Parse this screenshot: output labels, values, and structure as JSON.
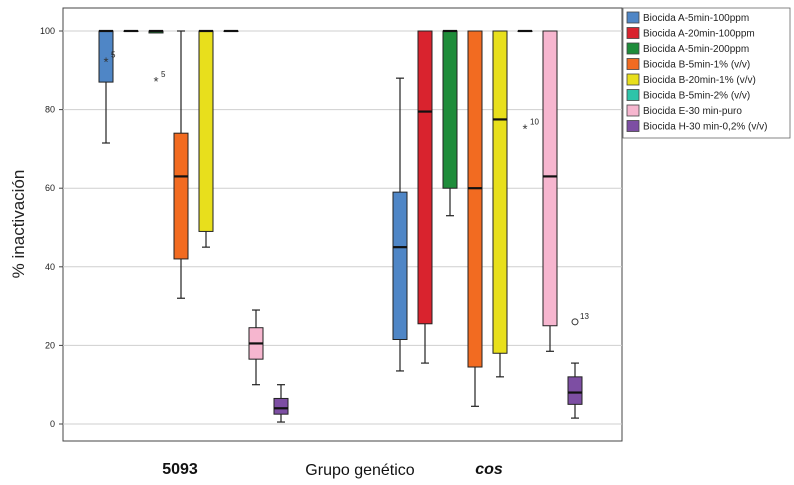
{
  "chart_data": {
    "type": "boxplot",
    "ylabel": "% inactivación",
    "xlabel": "Grupo genético",
    "ylim": [
      0,
      100
    ],
    "yticks": [
      0,
      20,
      40,
      60,
      80,
      100
    ],
    "grid": "horizontal",
    "legend_position": "right",
    "groups": [
      "5093",
      "cos"
    ],
    "series": [
      {
        "name": "Biocida A-5min-100ppm",
        "color": "#4f86c6",
        "data": [
          {
            "group": "5093",
            "min": 71.5,
            "q1": 87,
            "median": 100,
            "q3": 100,
            "max": 100,
            "outliers": [
              {
                "value": 92.5,
                "label": "5"
              }
            ]
          },
          {
            "group": "cos",
            "min": 13.5,
            "q1": 21.5,
            "median": 45,
            "q3": 59,
            "max": 88,
            "outliers": []
          }
        ]
      },
      {
        "name": "Biocida A-20min-100ppm",
        "color": "#d9232e",
        "data": [
          {
            "group": "5093",
            "min": 100,
            "q1": 100,
            "median": 100,
            "q3": 100,
            "max": 100,
            "outliers": []
          },
          {
            "group": "cos",
            "min": 15.5,
            "q1": 25.5,
            "median": 79.5,
            "q3": 100,
            "max": 100,
            "outliers": []
          }
        ]
      },
      {
        "name": "Biocida A-5min-200ppm",
        "color": "#1e8c3a",
        "data": [
          {
            "group": "5093",
            "min": 99.5,
            "q1": 99.5,
            "median": 100,
            "q3": 100,
            "max": 100,
            "outliers": [
              {
                "value": 87.5,
                "label": "5"
              }
            ]
          },
          {
            "group": "cos",
            "min": 53,
            "q1": 60,
            "median": 100,
            "q3": 100,
            "max": 100,
            "outliers": []
          }
        ]
      },
      {
        "name": "Biocida B-5min-1% (v/v)",
        "color": "#f26b21",
        "data": [
          {
            "group": "5093",
            "min": 32,
            "q1": 42,
            "median": 63,
            "q3": 74,
            "max": 100,
            "outliers": []
          },
          {
            "group": "cos",
            "min": 4.5,
            "q1": 14.5,
            "median": 60,
            "q3": 100,
            "max": 100,
            "outliers": []
          }
        ]
      },
      {
        "name": "Biocida B-20min-1% (v/v)",
        "color": "#e8df1c",
        "data": [
          {
            "group": "5093",
            "min": 45,
            "q1": 49,
            "median": 100,
            "q3": 100,
            "max": 100,
            "outliers": []
          },
          {
            "group": "cos",
            "min": 12,
            "q1": 18,
            "median": 77.5,
            "q3": 100,
            "max": 100,
            "outliers": []
          }
        ]
      },
      {
        "name": "Biocida B-5min-2% (v/v)",
        "color": "#2ec4a9",
        "data": [
          {
            "group": "5093",
            "min": 100,
            "q1": 100,
            "median": 100,
            "q3": 100,
            "max": 100,
            "outliers": []
          },
          {
            "group": "cos",
            "min": 100,
            "q1": 100,
            "median": 100,
            "q3": 100,
            "max": 100,
            "outliers": [
              {
                "value": 75.5,
                "label": "10"
              }
            ]
          }
        ]
      },
      {
        "name": "Biocida E-30 min-puro",
        "color": "#f6b6cf",
        "data": [
          {
            "group": "5093",
            "min": 10,
            "q1": 16.5,
            "median": 20.5,
            "q3": 24.5,
            "max": 29,
            "outliers": []
          },
          {
            "group": "cos",
            "min": 18.5,
            "q1": 25,
            "median": 63,
            "q3": 100,
            "max": 100,
            "outliers": []
          }
        ]
      },
      {
        "name": "Biocida H-30 min-0,2% (v/v)",
        "color": "#7d4ea3",
        "data": [
          {
            "group": "5093",
            "min": 0.5,
            "q1": 2.5,
            "median": 4,
            "q3": 6.5,
            "max": 10,
            "outliers": []
          },
          {
            "group": "cos",
            "min": 1.5,
            "q1": 5,
            "median": 8,
            "q3": 12,
            "max": 15.5,
            "outliers": [
              {
                "value": 26,
                "label": "13",
                "marker": "circle"
              }
            ]
          }
        ]
      }
    ]
  }
}
